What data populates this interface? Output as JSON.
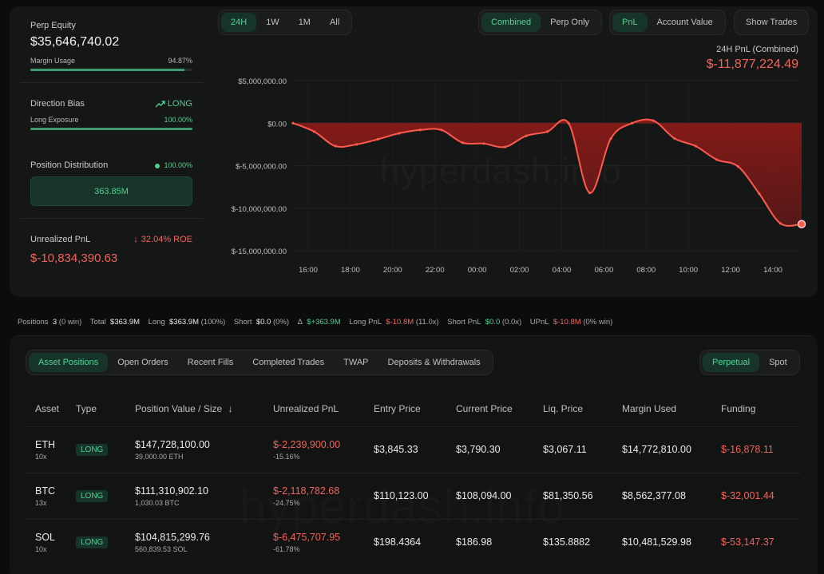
{
  "summary": {
    "perp_equity_label": "Perp Equity",
    "perp_equity_value": "$35,646,740.02",
    "margin_usage_label": "Margin Usage",
    "margin_usage_value": "94.87%",
    "margin_usage_fraction": 0.9487,
    "direction_bias_label": "Direction Bias",
    "direction_bias_value": "LONG",
    "long_exposure_label": "Long Exposure",
    "long_exposure_value": "100.00%",
    "long_exposure_fraction": 1.0,
    "position_distribution_label": "Position Distribution",
    "position_distribution_pct": "100.00%",
    "position_distribution_value": "363.85M",
    "unrealized_pnl_label": "Unrealized PnL",
    "unrealized_pnl_roe": "32.04% ROE",
    "unrealized_pnl_value": "$-10,834,390.63"
  },
  "range_tabs": [
    {
      "label": "24H",
      "active": true
    },
    {
      "label": "1W",
      "active": false
    },
    {
      "label": "1M",
      "active": false
    },
    {
      "label": "All",
      "active": false
    }
  ],
  "mode_tabs": [
    {
      "label": "Combined",
      "active": true
    },
    {
      "label": "Perp Only",
      "active": false
    }
  ],
  "metric_tabs": [
    {
      "label": "PnL",
      "active": true
    },
    {
      "label": "Account Value",
      "active": false
    }
  ],
  "show_trades_label": "Show Trades",
  "watermark": "hyperdash.info",
  "chart_data": {
    "type": "area",
    "title": "24H PnL (Combined)",
    "headline_value": "$-11,877,224.49",
    "x": [
      "15:00",
      "16:00",
      "17:00",
      "18:00",
      "19:00",
      "20:00",
      "21:00",
      "22:00",
      "23:00",
      "00:00",
      "01:00",
      "02:00",
      "03:00",
      "04:00",
      "05:00",
      "06:00",
      "07:00",
      "08:00",
      "09:00",
      "10:00",
      "11:00",
      "12:00",
      "13:00",
      "14:00",
      "15:00"
    ],
    "series": [
      {
        "values": [
          0,
          -1000000,
          -2700000,
          -2500000,
          -1900000,
          -1200000,
          -800000,
          -800000,
          -2300000,
          -2400000,
          -2800000,
          -1500000,
          -1000000,
          0,
          -8200000,
          -1800000,
          0,
          300000,
          -1800000,
          -2700000,
          -4300000,
          -5100000,
          -8300000,
          -11800000,
          -11877224
        ]
      }
    ],
    "x_tick_labels": [
      "16:00",
      "18:00",
      "20:00",
      "22:00",
      "00:00",
      "02:00",
      "04:00",
      "06:00",
      "08:00",
      "10:00",
      "12:00",
      "14:00"
    ],
    "y_tick_labels": [
      "$5,000,000.00",
      "$0.00",
      "$-5,000,000.00",
      "$-10,000,000.00",
      "$-15,000,000.00"
    ],
    "y_ticks": [
      5000000,
      0,
      -5000000,
      -10000000,
      -15000000
    ],
    "ylim": [
      -15000000,
      5000000
    ],
    "line_color": "#ff5a4e",
    "fill_color": "#8a1a18"
  },
  "stats": {
    "positions_label": "Positions",
    "positions_value": "3",
    "positions_win": "(0 win)",
    "total_label": "Total",
    "total_value": "$363.9M",
    "long_label": "Long",
    "long_value": "$363.9M",
    "long_pct": "(100%)",
    "short_label": "Short",
    "short_value": "$0.0",
    "short_pct": "(0%)",
    "delta_label": "Δ",
    "delta_value": "$+363.9M",
    "long_pnl_label": "Long PnL",
    "long_pnl_value": "$-10.8M",
    "long_pnl_x": "(11.0x)",
    "short_pnl_label": "Short PnL",
    "short_pnl_value": "$0.0",
    "short_pnl_x": "(0.0x)",
    "upnl_label": "UPnL",
    "upnl_value": "$-10.8M",
    "upnl_win": "(0% win)"
  },
  "bottom_tabs": [
    {
      "label": "Asset Positions",
      "active": true
    },
    {
      "label": "Open Orders",
      "active": false
    },
    {
      "label": "Recent Fills",
      "active": false
    },
    {
      "label": "Completed Trades",
      "active": false
    },
    {
      "label": "TWAP",
      "active": false
    },
    {
      "label": "Deposits & Withdrawals",
      "active": false
    }
  ],
  "market_tabs": [
    {
      "label": "Perpetual",
      "active": true
    },
    {
      "label": "Spot",
      "active": false
    }
  ],
  "table": {
    "headers": [
      "Asset",
      "Type",
      "Position Value / Size",
      "Unrealized PnL",
      "Entry Price",
      "Current Price",
      "Liq. Price",
      "Margin Used",
      "Funding"
    ],
    "sort_icon": "↓",
    "rows": [
      {
        "asset": "ETH",
        "leverage": "10x",
        "type": "LONG",
        "value": "$147,728,100.00",
        "size": "39,000.00 ETH",
        "upnl": "$-2,239,900.00",
        "upnl_pct": "-15.16%",
        "entry": "$3,845.33",
        "current": "$3,790.30",
        "liq": "$3,067.11",
        "margin": "$14,772,810.00",
        "funding": "$-16,878.11"
      },
      {
        "asset": "BTC",
        "leverage": "13x",
        "type": "LONG",
        "value": "$111,310,902.10",
        "size": "1,030.03 BTC",
        "upnl": "$-2,118,782.68",
        "upnl_pct": "-24.75%",
        "entry": "$110,123.00",
        "current": "$108,094.00",
        "liq": "$81,350.56",
        "margin": "$8,562,377.08",
        "funding": "$-32,001.44"
      },
      {
        "asset": "SOL",
        "leverage": "10x",
        "type": "LONG",
        "value": "$104,815,299.76",
        "size": "560,839.53 SOL",
        "upnl": "$-6,475,707.95",
        "upnl_pct": "-61.78%",
        "entry": "$198.4364",
        "current": "$186.98",
        "liq": "$135.8882",
        "margin": "$10,481,529.98",
        "funding": "$-53,147.37"
      }
    ]
  }
}
